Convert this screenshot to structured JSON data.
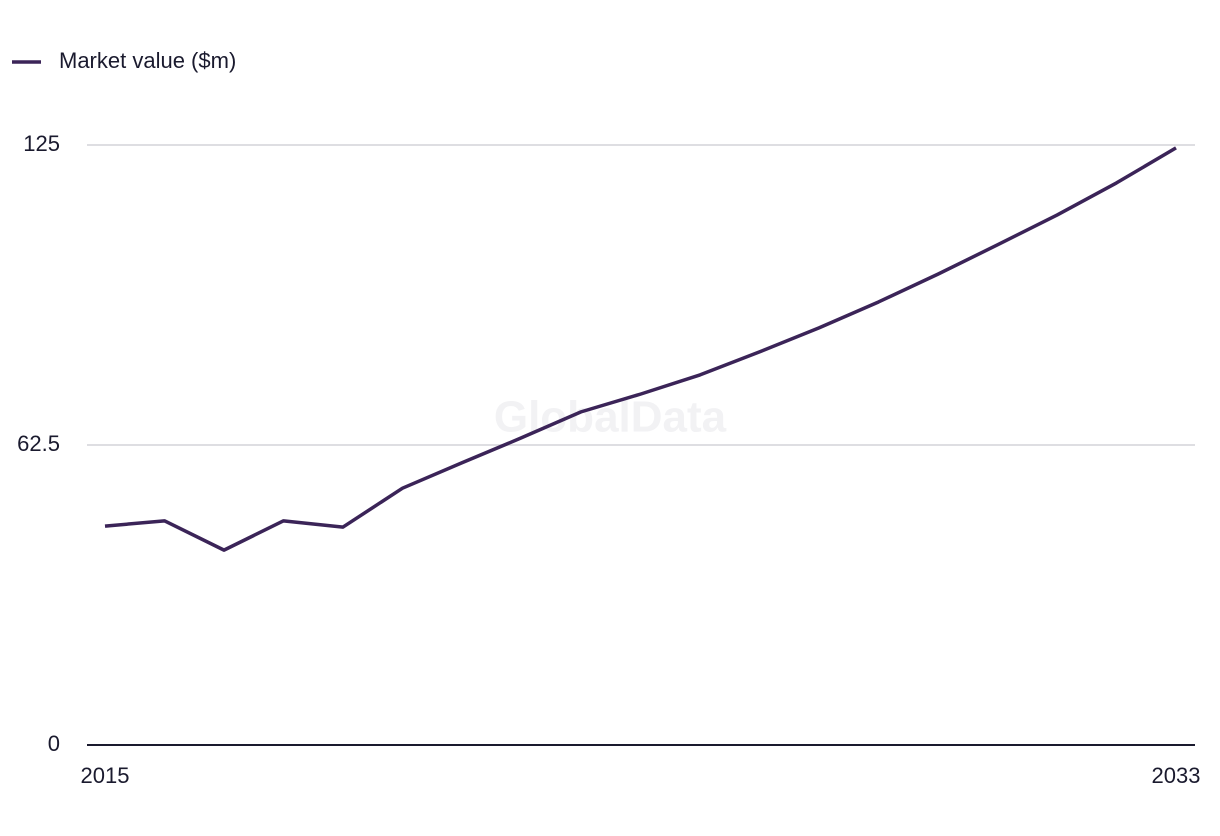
{
  "chart_data": {
    "type": "line",
    "watermark": "GlobalData",
    "x": [
      2015,
      2016,
      2017,
      2018,
      2019,
      2020,
      2021,
      2022,
      2023,
      2024,
      2025,
      2026,
      2027,
      2028,
      2029,
      2030,
      2031,
      2032,
      2033
    ],
    "series": [
      {
        "name": "Market value ($m)",
        "color": "#3b2458",
        "values": [
          45.6,
          46.7,
          40.6,
          46.7,
          45.4,
          53.5,
          58.8,
          64.0,
          69.4,
          73.1,
          77.1,
          81.9,
          86.9,
          92.3,
          98.1,
          104.2,
          110.4,
          117.1,
          124.4
        ]
      }
    ],
    "xlim": [
      2015,
      2033
    ],
    "xticks": [
      2015,
      2033
    ],
    "ylim": [
      0,
      125
    ],
    "yticks": [
      0,
      62.5,
      125
    ],
    "grid": true,
    "legend": "top-left"
  }
}
